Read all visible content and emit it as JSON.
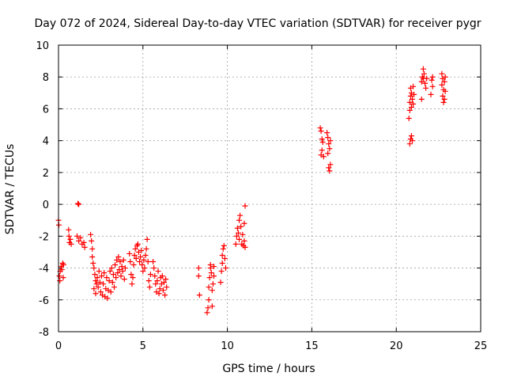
{
  "chart_data": {
    "type": "scatter",
    "title": "Day 072 of 2024, Sidereal Day-to-day VTEC variation (SDTVAR) for receiver pygr",
    "xlabel": "GPS time / hours",
    "ylabel": "SDTVAR / TECUs",
    "xlim": [
      0,
      25
    ],
    "ylim": [
      -8,
      10
    ],
    "xticks": [
      0,
      5,
      10,
      15,
      20,
      25
    ],
    "yticks": [
      -8,
      -6,
      -4,
      -2,
      0,
      2,
      4,
      6,
      8,
      10
    ],
    "grid": true,
    "marker": "+",
    "color": "#ff0000",
    "series": [
      {
        "name": "SDTVAR",
        "points": [
          [
            0.0,
            -1.0
          ],
          [
            0.02,
            -1.3
          ],
          [
            0.05,
            -4.5
          ],
          [
            0.08,
            -4.8
          ],
          [
            0.1,
            -4.2
          ],
          [
            0.15,
            -3.9
          ],
          [
            0.2,
            -4.1
          ],
          [
            0.25,
            -3.7
          ],
          [
            0.28,
            -4.6
          ],
          [
            0.3,
            -3.8
          ],
          [
            0.6,
            -1.6
          ],
          [
            0.62,
            -2.0
          ],
          [
            0.65,
            -2.4
          ],
          [
            0.7,
            -2.2
          ],
          [
            0.75,
            -2.5
          ],
          [
            1.15,
            0.05
          ],
          [
            1.2,
            0.0
          ],
          [
            1.1,
            -2.0
          ],
          [
            1.2,
            -2.3
          ],
          [
            1.3,
            -2.1
          ],
          [
            1.4,
            -2.5
          ],
          [
            1.5,
            -2.4
          ],
          [
            1.55,
            -2.7
          ],
          [
            1.9,
            -1.9
          ],
          [
            1.95,
            -2.3
          ],
          [
            2.0,
            -2.8
          ],
          [
            2.0,
            -3.3
          ],
          [
            2.05,
            -3.7
          ],
          [
            2.1,
            -4.0
          ],
          [
            2.15,
            -4.4
          ],
          [
            2.2,
            -4.8
          ],
          [
            2.25,
            -5.0
          ],
          [
            2.3,
            -4.6
          ],
          [
            2.1,
            -5.3
          ],
          [
            2.2,
            -5.6
          ],
          [
            2.35,
            -5.2
          ],
          [
            2.4,
            -4.2
          ],
          [
            2.45,
            -4.9
          ],
          [
            2.5,
            -5.5
          ],
          [
            2.55,
            -4.5
          ],
          [
            2.6,
            -5.7
          ],
          [
            2.65,
            -5.0
          ],
          [
            2.7,
            -4.3
          ],
          [
            2.75,
            -5.8
          ],
          [
            2.8,
            -5.3
          ],
          [
            2.85,
            -4.6
          ],
          [
            2.9,
            -5.9
          ],
          [
            2.95,
            -5.4
          ],
          [
            3.0,
            -4.8
          ],
          [
            3.05,
            -4.2
          ],
          [
            3.1,
            -5.5
          ],
          [
            3.15,
            -4.0
          ],
          [
            3.2,
            -4.9
          ],
          [
            3.25,
            -4.4
          ],
          [
            3.3,
            -5.2
          ],
          [
            3.35,
            -3.8
          ],
          [
            3.4,
            -4.6
          ],
          [
            3.45,
            -3.5
          ],
          [
            3.5,
            -4.3
          ],
          [
            3.55,
            -3.3
          ],
          [
            3.6,
            -4.1
          ],
          [
            3.65,
            -3.6
          ],
          [
            3.7,
            -4.5
          ],
          [
            3.75,
            -3.9
          ],
          [
            3.8,
            -4.2
          ],
          [
            3.85,
            -3.5
          ],
          [
            3.9,
            -4.7
          ],
          [
            3.95,
            -4.0
          ],
          [
            4.2,
            -3.1
          ],
          [
            4.25,
            -3.6
          ],
          [
            4.3,
            -4.4
          ],
          [
            4.35,
            -5.0
          ],
          [
            4.4,
            -4.6
          ],
          [
            4.45,
            -3.8
          ],
          [
            4.5,
            -3.2
          ],
          [
            4.55,
            -2.8
          ],
          [
            4.6,
            -3.4
          ],
          [
            4.65,
            -2.6
          ],
          [
            4.7,
            -2.5
          ],
          [
            4.75,
            -3.0
          ],
          [
            4.8,
            -3.6
          ],
          [
            4.85,
            -3.3
          ],
          [
            4.9,
            -2.9
          ],
          [
            4.95,
            -3.8
          ],
          [
            5.0,
            -4.2
          ],
          [
            5.05,
            -3.5
          ],
          [
            5.1,
            -4.0
          ],
          [
            5.15,
            -3.2
          ],
          [
            5.2,
            -2.8
          ],
          [
            5.25,
            -2.2
          ],
          [
            5.3,
            -3.6
          ],
          [
            5.35,
            -4.8
          ],
          [
            5.4,
            -5.2
          ],
          [
            5.45,
            -4.4
          ],
          [
            5.6,
            -3.6
          ],
          [
            5.65,
            -4.0
          ],
          [
            5.7,
            -4.5
          ],
          [
            5.75,
            -5.0
          ],
          [
            5.8,
            -5.5
          ],
          [
            5.85,
            -4.8
          ],
          [
            5.9,
            -4.2
          ],
          [
            5.95,
            -5.6
          ],
          [
            6.0,
            -5.3
          ],
          [
            6.05,
            -4.6
          ],
          [
            6.1,
            -5.0
          ],
          [
            6.15,
            -4.5
          ],
          [
            6.2,
            -5.4
          ],
          [
            6.25,
            -4.9
          ],
          [
            6.3,
            -5.7
          ],
          [
            6.35,
            -4.7
          ],
          [
            6.4,
            -5.2
          ],
          [
            8.3,
            -4.0
          ],
          [
            8.3,
            -4.5
          ],
          [
            8.35,
            -5.7
          ],
          [
            8.8,
            -6.8
          ],
          [
            8.85,
            -6.5
          ],
          [
            8.9,
            -6.0
          ],
          [
            8.9,
            -5.2
          ],
          [
            8.95,
            -4.6
          ],
          [
            9.0,
            -4.0
          ],
          [
            9.0,
            -3.8
          ],
          [
            9.05,
            -4.3
          ],
          [
            9.1,
            -5.4
          ],
          [
            9.1,
            -6.4
          ],
          [
            9.15,
            -5.0
          ],
          [
            9.2,
            -4.5
          ],
          [
            9.2,
            -3.9
          ],
          [
            9.6,
            -4.9
          ],
          [
            9.65,
            -4.2
          ],
          [
            9.7,
            -3.7
          ],
          [
            9.7,
            -3.2
          ],
          [
            9.75,
            -2.8
          ],
          [
            9.8,
            -2.6
          ],
          [
            9.85,
            -3.4
          ],
          [
            9.9,
            -4.0
          ],
          [
            10.5,
            -2.5
          ],
          [
            10.55,
            -2.0
          ],
          [
            10.6,
            -1.5
          ],
          [
            10.65,
            -1.8
          ],
          [
            10.7,
            -2.2
          ],
          [
            10.7,
            -1.0
          ],
          [
            10.75,
            -0.7
          ],
          [
            10.8,
            -1.4
          ],
          [
            10.85,
            -2.5
          ],
          [
            10.9,
            -1.9
          ],
          [
            10.95,
            -2.6
          ],
          [
            11.0,
            -2.3
          ],
          [
            11.0,
            -1.2
          ],
          [
            11.05,
            -0.1
          ],
          [
            11.05,
            -2.7
          ],
          [
            15.5,
            4.8
          ],
          [
            15.55,
            4.6
          ],
          [
            15.55,
            3.1
          ],
          [
            15.6,
            3.4
          ],
          [
            15.6,
            4.1
          ],
          [
            15.65,
            3.9
          ],
          [
            15.7,
            3.0
          ],
          [
            15.9,
            4.5
          ],
          [
            15.95,
            4.2
          ],
          [
            15.95,
            3.2
          ],
          [
            16.0,
            3.8
          ],
          [
            16.0,
            2.3
          ],
          [
            16.05,
            2.1
          ],
          [
            16.05,
            3.5
          ],
          [
            16.1,
            2.5
          ],
          [
            16.1,
            4.0
          ],
          [
            20.8,
            3.8
          ],
          [
            20.85,
            4.1
          ],
          [
            20.9,
            4.3
          ],
          [
            20.95,
            4.0
          ],
          [
            20.75,
            5.4
          ],
          [
            20.8,
            5.9
          ],
          [
            20.8,
            6.4
          ],
          [
            20.85,
            6.8
          ],
          [
            20.85,
            7.3
          ],
          [
            20.9,
            6.1
          ],
          [
            20.9,
            7.0
          ],
          [
            20.95,
            6.6
          ],
          [
            21.0,
            7.4
          ],
          [
            21.0,
            6.3
          ],
          [
            21.05,
            6.9
          ],
          [
            21.5,
            7.7
          ],
          [
            21.5,
            6.6
          ],
          [
            21.55,
            8.0
          ],
          [
            21.6,
            8.5
          ],
          [
            21.6,
            7.9
          ],
          [
            21.65,
            8.2
          ],
          [
            21.7,
            7.6
          ],
          [
            21.75,
            7.3
          ],
          [
            21.8,
            7.9
          ],
          [
            22.05,
            6.9
          ],
          [
            22.1,
            7.8
          ],
          [
            22.15,
            8.0
          ],
          [
            22.15,
            7.4
          ],
          [
            22.7,
            8.2
          ],
          [
            22.7,
            7.5
          ],
          [
            22.75,
            6.8
          ],
          [
            22.75,
            7.9
          ],
          [
            22.8,
            6.4
          ],
          [
            22.8,
            7.2
          ],
          [
            22.85,
            7.7
          ],
          [
            22.85,
            6.6
          ],
          [
            22.9,
            8.0
          ],
          [
            22.9,
            7.1
          ]
        ]
      }
    ]
  }
}
